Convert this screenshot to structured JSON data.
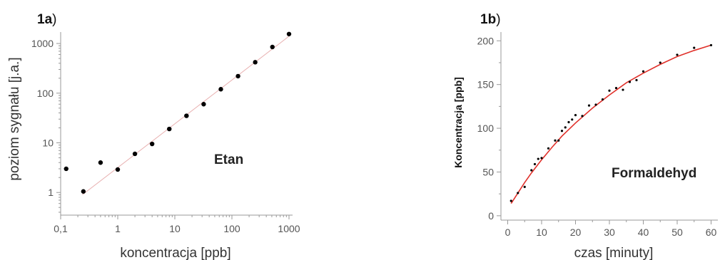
{
  "chart_data": [
    {
      "type": "scatter",
      "panel_label": {
        "number": "1a",
        "suffix": ")"
      },
      "annotation": "Etan",
      "xlabel": "koncentracja [ppb]",
      "ylabel": "poziom sygnału [j.a.]",
      "x_scale": "log",
      "y_scale": "log",
      "xlim": [
        0.1,
        1000
      ],
      "ylim": [
        0.35,
        1700
      ],
      "x_ticks": [
        {
          "value": 0.1,
          "label": "0,1"
        },
        {
          "value": 1,
          "label": "1"
        },
        {
          "value": 10,
          "label": "10"
        },
        {
          "value": 100,
          "label": "100"
        },
        {
          "value": 1000,
          "label": "1000"
        }
      ],
      "y_ticks": [
        {
          "value": 1,
          "label": "1"
        },
        {
          "value": 10,
          "label": "10"
        },
        {
          "value": 100,
          "label": "100"
        },
        {
          "value": 1000,
          "label": "1000"
        }
      ],
      "fit_line": {
        "x": [
          0.24,
          1000
        ],
        "y": [
          0.9,
          1400
        ],
        "color": "#e8b0b0"
      },
      "series": [
        {
          "color": "#000000",
          "x": [
            0.125,
            0.25,
            0.5,
            1.0,
            2.0,
            4.0,
            8.0,
            16.0,
            32.0,
            64.0,
            128.0,
            256.0,
            512.0,
            1000.0
          ],
          "y": [
            3.0,
            1.05,
            4.0,
            2.9,
            6.0,
            9.5,
            19.0,
            35.0,
            60.0,
            120.0,
            220.0,
            420.0,
            850.0,
            1550.0
          ]
        }
      ]
    },
    {
      "type": "scatter",
      "panel_label": {
        "number": "1b",
        "suffix": ")"
      },
      "annotation": "Formaldehyd",
      "xlabel": "czas [minuty]",
      "ylabel": "Koncentracja [ppb]",
      "xlim": [
        -2,
        62
      ],
      "ylim": [
        -5,
        210
      ],
      "x_ticks": [
        {
          "value": 0,
          "label": "0"
        },
        {
          "value": 10,
          "label": "10"
        },
        {
          "value": 20,
          "label": "20"
        },
        {
          "value": 30,
          "label": "30"
        },
        {
          "value": 40,
          "label": "40"
        },
        {
          "value": 50,
          "label": "50"
        },
        {
          "value": 60,
          "label": "60"
        }
      ],
      "y_ticks": [
        {
          "value": 0,
          "label": "0"
        },
        {
          "value": 50,
          "label": "50"
        },
        {
          "value": 100,
          "label": "100"
        },
        {
          "value": 150,
          "label": "150"
        },
        {
          "value": 200,
          "label": "200"
        }
      ],
      "fit_curve": {
        "color": "#e0302a",
        "x": [
          1,
          3,
          5,
          7,
          10,
          13,
          16,
          20,
          25,
          30,
          35,
          40,
          45,
          50,
          55,
          60
        ],
        "y": [
          14,
          26,
          38,
          49,
          64,
          78,
          91,
          106,
          123,
          138,
          152,
          163,
          173,
          182,
          189,
          195
        ]
      },
      "series": [
        {
          "color": "#000000",
          "x": [
            1,
            3,
            5,
            7,
            8,
            9,
            10,
            12,
            14,
            15,
            16,
            17,
            18,
            19,
            20,
            22,
            24,
            26,
            28,
            30,
            32,
            34,
            36,
            38,
            40,
            45,
            50,
            55,
            60
          ],
          "y": [
            17,
            26,
            33,
            52,
            59,
            65,
            66,
            77,
            86,
            86,
            97,
            101,
            107,
            110,
            115,
            114,
            126,
            127,
            133,
            143,
            146,
            144,
            153,
            155,
            165,
            175,
            184,
            192,
            195
          ]
        }
      ]
    }
  ]
}
